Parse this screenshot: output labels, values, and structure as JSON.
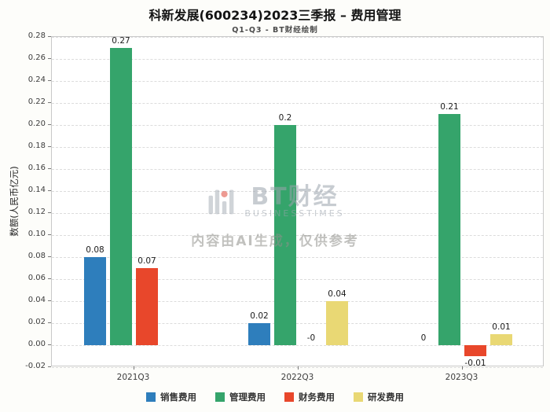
{
  "header": {
    "title": "科新发展(600234)2023三季报 – 费用管理",
    "subtitle": "Q1-Q3 - BT财经绘制"
  },
  "watermark": {
    "brand": "BT财经",
    "brand_sub": "BUSINESSTIMES",
    "notice": "内容由AI生成，仅供参考"
  },
  "chart_data": {
    "type": "bar",
    "title": "科新发展(600234)2023三季报 – 费用管理",
    "subtitle": "Q1-Q3 - BT财经绘制",
    "xlabel": "",
    "ylabel": "数额(人民币亿元)",
    "categories": [
      "2021Q3",
      "2022Q3",
      "2023Q3"
    ],
    "series": [
      {
        "name": "销售费用",
        "color": "#2e7ebc",
        "values": [
          0.08,
          0.02,
          0
        ],
        "labels": [
          "0.08",
          "0.02",
          "0"
        ]
      },
      {
        "name": "管理费用",
        "color": "#35a46b",
        "values": [
          0.27,
          0.2,
          0.21
        ],
        "labels": [
          "0.27",
          "0.2",
          "0.21"
        ]
      },
      {
        "name": "财务费用",
        "color": "#e8472b",
        "values": [
          0.07,
          0,
          -0.01
        ],
        "labels": [
          "0.07",
          "-0",
          "-0.01"
        ]
      },
      {
        "name": "研发费用",
        "color": "#e9d874",
        "values": [
          null,
          0.04,
          0.01
        ],
        "labels": [
          null,
          "0.04",
          "0.01"
        ]
      }
    ],
    "ylim": [
      -0.02,
      0.28
    ],
    "ytick_step": 0.02,
    "grid": true,
    "legend_position": "bottom"
  }
}
